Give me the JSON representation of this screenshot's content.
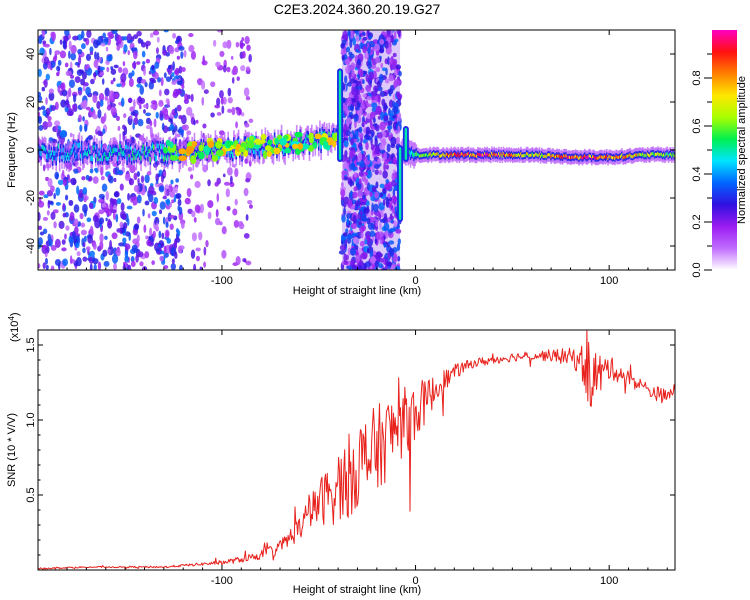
{
  "title": "C2E3.2024.360.20.19.G27",
  "colors": {
    "snr_line": "#e8231e",
    "tail_band": "#9f1ff0",
    "core_band": "#2a10d8",
    "saturated": "#ff1010"
  },
  "chart_data": [
    {
      "type": "heatmap",
      "title": "C2E3.2024.360.20.19.G27",
      "xlabel": "Height of straight line (km)",
      "ylabel": "Frequency (Hz)",
      "xlim": [
        -195,
        134
      ],
      "ylim": [
        -50,
        50
      ],
      "xticks": [
        -100,
        0,
        100
      ],
      "xtick_labels": [
        "-100",
        "0",
        "100"
      ],
      "yticks": [
        -40,
        -20,
        0,
        20,
        40
      ],
      "ytick_labels": [
        "-40",
        "-20",
        "0",
        "20",
        "40"
      ],
      "colorbar": {
        "label": "Normalized spectral amplitude",
        "range": [
          0.0,
          1.0
        ],
        "ticks": [
          0.0,
          0.2,
          0.4,
          0.6,
          0.8
        ],
        "tick_labels": [
          "0.0",
          "0.2",
          "0.4",
          "0.6",
          "0.8"
        ],
        "colormap": [
          "#ffffff",
          "#c06cff",
          "#9a1cf0",
          "#3010e0",
          "#0066ff",
          "#00e5ff",
          "#00f050",
          "#a8ff00",
          "#ffe800",
          "#ff8000",
          "#ff1010",
          "#ff00c0"
        ]
      },
      "ridge": [
        {
          "x": -190,
          "y": -1,
          "amp": 0.45
        },
        {
          "x": -160,
          "y": -1,
          "amp": 0.5
        },
        {
          "x": -125,
          "y": -1,
          "amp": 0.55
        },
        {
          "x": -110,
          "y": 0,
          "amp": 0.6
        },
        {
          "x": -90,
          "y": 1,
          "amp": 0.55
        },
        {
          "x": -70,
          "y": 2,
          "amp": 0.5
        },
        {
          "x": -50,
          "y": 4,
          "amp": 0.55
        },
        {
          "x": -42,
          "y": 6,
          "amp": 0.5
        },
        {
          "x": 0,
          "y": -2,
          "amp": 0.6
        },
        {
          "x": 20,
          "y": -2,
          "amp": 0.9
        },
        {
          "x": 40,
          "y": -2,
          "amp": 0.95
        },
        {
          "x": 60,
          "y": -2,
          "amp": 0.7
        },
        {
          "x": 80,
          "y": -3,
          "amp": 0.95
        },
        {
          "x": 100,
          "y": -3,
          "amp": 0.9
        },
        {
          "x": 120,
          "y": -2,
          "amp": 0.7
        },
        {
          "x": 134,
          "y": -2,
          "amp": 0.6
        }
      ],
      "noise_regions": [
        {
          "x_range": [
            -195,
            -120
          ],
          "y_range": [
            -50,
            50
          ],
          "density": "high"
        },
        {
          "x_range": [
            -120,
            -85
          ],
          "y_range": [
            -50,
            50
          ],
          "density": "low"
        },
        {
          "x_range": [
            -38,
            -8
          ],
          "y_range": [
            -50,
            50
          ],
          "density": "high"
        }
      ],
      "spikes": [
        {
          "x": -39,
          "y_range": [
            -5,
            34
          ]
        },
        {
          "x": -8,
          "y_range": [
            -30,
            2
          ]
        },
        {
          "x": -5,
          "y_range": [
            -5,
            10
          ]
        }
      ]
    },
    {
      "type": "line",
      "xlabel": "Height of straight line (km)",
      "ylabel": "SNR (10 * V/V)",
      "y_scale_label": "(x10⁴)",
      "scale_base": "(x10",
      "scale_exp": "4",
      "scale_close": ")",
      "xlim": [
        -195,
        134
      ],
      "ylim": [
        0,
        1.6
      ],
      "xticks": [
        -100,
        0,
        100
      ],
      "xtick_labels": [
        "-100",
        "0",
        "100"
      ],
      "yticks": [
        0.5,
        1.0,
        1.5
      ],
      "ytick_labels": [
        "0.5",
        "1.0",
        "1.5"
      ],
      "series": [
        {
          "name": "SNR",
          "x": [
            -195,
            -170,
            -150,
            -130,
            -120,
            -110,
            -100,
            -90,
            -80,
            -70,
            -60,
            -50,
            -40,
            -30,
            -20,
            -10,
            0,
            10,
            20,
            30,
            40,
            50,
            60,
            70,
            80,
            85,
            90,
            95,
            100,
            110,
            120,
            130,
            134
          ],
          "y": [
            0.01,
            0.02,
            0.02,
            0.02,
            0.03,
            0.04,
            0.05,
            0.07,
            0.1,
            0.15,
            0.28,
            0.45,
            0.55,
            0.7,
            0.8,
            0.95,
            1.05,
            1.2,
            1.32,
            1.38,
            1.4,
            1.42,
            1.43,
            1.43,
            1.42,
            1.4,
            1.3,
            1.3,
            1.35,
            1.28,
            1.2,
            1.15,
            1.22
          ],
          "noise": [
            0.005,
            0.005,
            0.005,
            0.006,
            0.008,
            0.01,
            0.015,
            0.02,
            0.03,
            0.05,
            0.08,
            0.15,
            0.25,
            0.3,
            0.3,
            0.25,
            0.2,
            0.1,
            0.05,
            0.03,
            0.03,
            0.03,
            0.03,
            0.04,
            0.06,
            0.1,
            0.25,
            0.15,
            0.08,
            0.05,
            0.05,
            0.05,
            0.04
          ]
        }
      ]
    }
  ]
}
